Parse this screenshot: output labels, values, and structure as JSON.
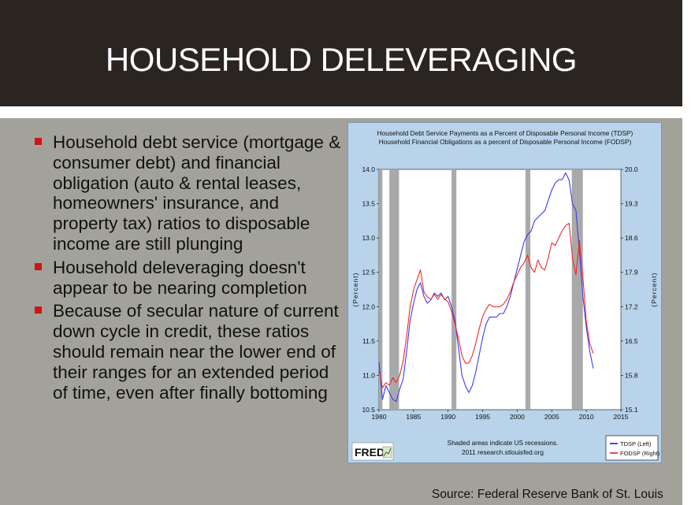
{
  "slide": {
    "title": "HOUSEHOLD DELEVERAGING",
    "bullets": [
      "Household debt service (mortgage & consumer debt) and financial obligation (auto & rental leases, homeowners' insurance, and property tax) ratios to disposable income are still plunging",
      "Household deleveraging doesn't appear to be nearing completion",
      "Because of secular nature of current down cycle in credit, these ratios should remain near the lower end of their ranges for an extended period of time, even after finally bottoming"
    ],
    "source": "Source: Federal Reserve Bank of St. Louis",
    "bullet_color": "#d0141a"
  },
  "chart_data": {
    "type": "line",
    "title": [
      "Household Debt Service Payments as a Percent of Disposable Personal Income (TDSP)",
      "Household Financial Obligations as a percent of Disposable Personal Income (FODSP)"
    ],
    "ylabel_left": "(Percent)",
    "ylabel_right": "(Percent)",
    "left_ticks": [
      "10.5",
      "11.0",
      "11.5",
      "12.0",
      "12.5",
      "13.0",
      "13.5",
      "14.0"
    ],
    "right_ticks": [
      "15.1",
      "15.8",
      "16.5",
      "17.2",
      "17.9",
      "18.6",
      "19.3",
      "20.0"
    ],
    "ylim_left": [
      10.5,
      14.0
    ],
    "ylim_right": [
      15.1,
      20.0
    ],
    "x_ticks": [
      "1980",
      "1985",
      "1990",
      "1995",
      "2000",
      "2005",
      "2010",
      "2015"
    ],
    "xlim": [
      1980,
      2015
    ],
    "footer": [
      "Shaded areas indicate US recessions.",
      "2011 research.stlouisfed.org"
    ],
    "logo": "FRED",
    "recessions": [
      [
        1980.0,
        1980.5
      ],
      [
        1981.5,
        1982.9
      ],
      [
        1990.5,
        1991.2
      ],
      [
        2001.2,
        2001.9
      ],
      [
        2007.9,
        2009.5
      ]
    ],
    "legend": [
      {
        "label": "TDSP (Left)",
        "color": "#1a1aee"
      },
      {
        "label": "FODSP (Right)",
        "color": "#ee1a1a"
      }
    ],
    "series": [
      {
        "name": "TDSP (Left)",
        "axis": "left",
        "color": "#3b3bee",
        "x": [
          1980.0,
          1980.5,
          1981.0,
          1981.5,
          1982.0,
          1982.5,
          1983.0,
          1983.5,
          1984.0,
          1984.5,
          1985.0,
          1985.5,
          1986.0,
          1986.5,
          1987.0,
          1987.5,
          1988.0,
          1988.5,
          1989.0,
          1989.5,
          1990.0,
          1990.5,
          1991.0,
          1991.5,
          1992.0,
          1992.5,
          1993.0,
          1993.5,
          1994.0,
          1994.5,
          1995.0,
          1995.5,
          1996.0,
          1996.5,
          1997.0,
          1997.5,
          1998.0,
          1998.5,
          1999.0,
          1999.5,
          2000.0,
          2000.5,
          2001.0,
          2001.5,
          2002.0,
          2002.5,
          2003.0,
          2003.5,
          2004.0,
          2004.5,
          2005.0,
          2005.5,
          2006.0,
          2006.5,
          2007.0,
          2007.5,
          2008.0,
          2008.5,
          2009.0,
          2009.5,
          2010.0,
          2010.5,
          2011.0
        ],
        "y": [
          11.2,
          10.65,
          10.85,
          10.75,
          10.65,
          10.62,
          10.8,
          10.95,
          11.35,
          11.8,
          12.05,
          12.25,
          12.35,
          12.15,
          12.05,
          12.1,
          12.2,
          12.15,
          12.2,
          12.1,
          12.15,
          12.0,
          11.8,
          11.4,
          11.0,
          10.85,
          10.75,
          10.85,
          11.05,
          11.3,
          11.55,
          11.75,
          11.85,
          11.85,
          11.85,
          11.9,
          11.9,
          12.0,
          12.15,
          12.35,
          12.55,
          12.75,
          12.95,
          13.05,
          13.1,
          13.25,
          13.3,
          13.35,
          13.4,
          13.55,
          13.7,
          13.8,
          13.85,
          13.85,
          13.95,
          13.85,
          13.5,
          13.4,
          12.8,
          12.15,
          11.7,
          11.35,
          11.1
        ]
      },
      {
        "name": "FODSP (Right)",
        "axis": "right",
        "color": "#ee2a2a",
        "x": [
          1980.0,
          1980.5,
          1981.0,
          1981.5,
          1982.0,
          1982.5,
          1983.0,
          1983.5,
          1984.0,
          1984.5,
          1985.0,
          1985.5,
          1986.0,
          1986.5,
          1987.0,
          1987.5,
          1988.0,
          1988.5,
          1989.0,
          1989.5,
          1990.0,
          1990.5,
          1991.0,
          1991.5,
          1992.0,
          1992.5,
          1993.0,
          1993.5,
          1994.0,
          1994.5,
          1995.0,
          1995.5,
          1996.0,
          1996.5,
          1997.0,
          1997.5,
          1998.0,
          1998.5,
          1999.0,
          1999.5,
          2000.0,
          2000.5,
          2001.0,
          2001.5,
          2002.0,
          2002.5,
          2003.0,
          2003.5,
          2004.0,
          2004.5,
          2005.0,
          2005.5,
          2006.0,
          2006.5,
          2007.0,
          2007.5,
          2008.0,
          2008.5,
          2009.0,
          2009.5,
          2010.0,
          2010.5,
          2011.0
        ],
        "y": [
          15.9,
          15.55,
          15.65,
          15.6,
          15.75,
          15.65,
          15.8,
          16.1,
          16.6,
          17.2,
          17.55,
          17.75,
          17.95,
          17.5,
          17.4,
          17.35,
          17.45,
          17.35,
          17.45,
          17.35,
          17.3,
          17.1,
          16.85,
          16.55,
          16.2,
          16.05,
          16.05,
          16.2,
          16.45,
          16.75,
          17.0,
          17.15,
          17.25,
          17.2,
          17.2,
          17.2,
          17.25,
          17.35,
          17.5,
          17.7,
          17.85,
          18.0,
          18.1,
          18.25,
          18.0,
          17.9,
          18.15,
          18.0,
          17.95,
          18.2,
          18.5,
          18.45,
          18.6,
          18.75,
          18.85,
          18.9,
          18.2,
          17.85,
          18.55,
          17.8,
          16.9,
          16.45,
          16.25
        ]
      }
    ]
  }
}
